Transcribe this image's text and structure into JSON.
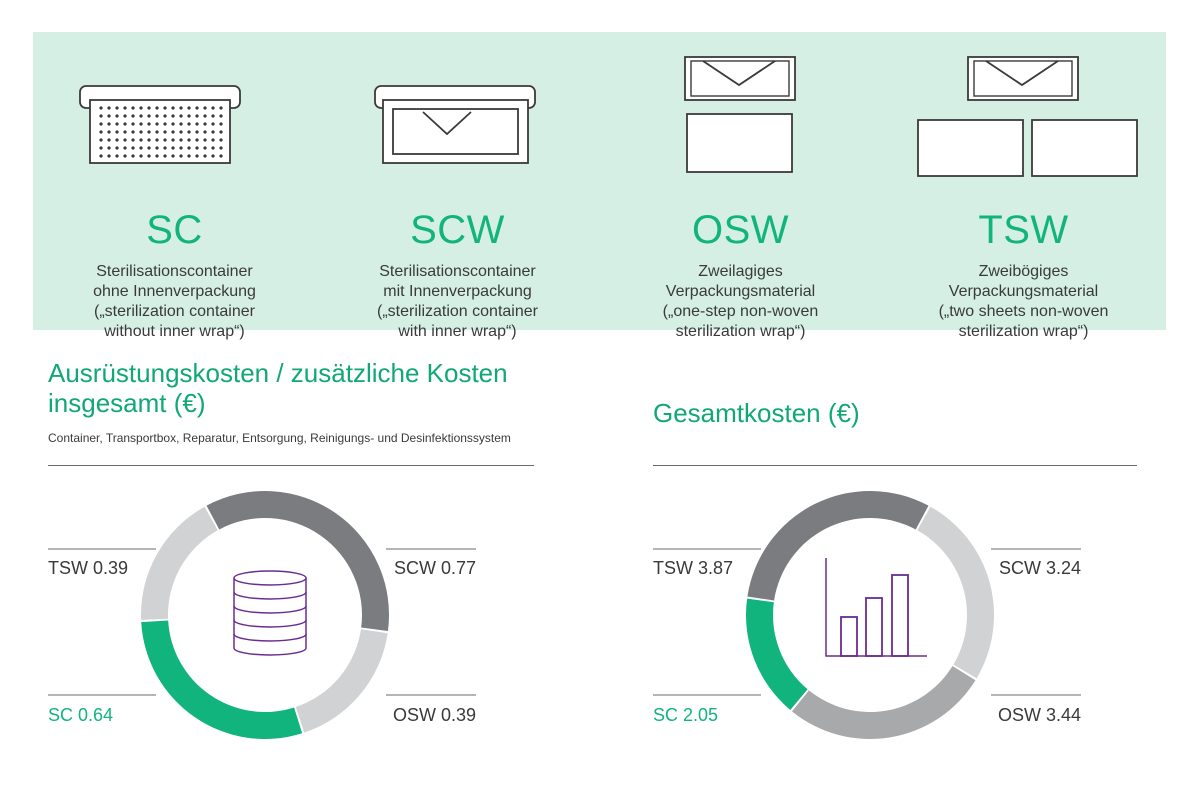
{
  "packaging": [
    {
      "code": "SC",
      "lines": [
        "Sterilisationscontainer",
        "ohne Innenverpackung",
        "(„sterilization container",
        "without inner wrap“)"
      ],
      "icon": "container-perforated-icon"
    },
    {
      "code": "SCW",
      "lines": [
        "Sterilisationscontainer",
        "mit Innenverpackung",
        "(„sterilization container",
        "with inner wrap“)"
      ],
      "icon": "container-with-wrap-icon"
    },
    {
      "code": "OSW",
      "lines": [
        "Zweilagiges",
        "Verpackungsmaterial",
        "(„one-step non-woven",
        "sterilization wrap“)"
      ],
      "icon": "one-step-wrap-icon"
    },
    {
      "code": "TSW",
      "lines": [
        "Zweibögiges",
        "Verpackungsmaterial",
        "(„two sheets non-woven",
        "sterilization wrap“)"
      ],
      "icon": "two-sheets-wrap-icon"
    }
  ],
  "colors": {
    "band": "#d5efe4",
    "accent_green": "#12b47e",
    "dark_gray": "#7b7c80",
    "mid_gray": "#a7a9ab",
    "light_gray": "#d1d2d3",
    "icon_purple": "#6a2c91"
  },
  "chart_data": [
    {
      "type": "pie",
      "title": "Ausrüstungskosten / zusätzliche Kosten insgesamt (€)",
      "title_lines": [
        "Ausrüstungskosten / zusätzliche Kosten",
        "insgesamt (€)"
      ],
      "subtitle": "Container, Transportbox, Reparatur, Entsorgung, Reinigungs- und Desinfektionssystem",
      "center_icon": "coin-stack-icon",
      "style": "donut",
      "series": [
        {
          "label": "SCW",
          "value": 0.77,
          "color": "#7b7c80",
          "text": "SCW 0.77"
        },
        {
          "label": "OSW",
          "value": 0.39,
          "color": "#d1d2d3",
          "text": "OSW 0.39"
        },
        {
          "label": "SC",
          "value": 0.64,
          "color": "#12b47e",
          "text": "SC 0.64"
        },
        {
          "label": "TSW",
          "value": 0.39,
          "color": "#d1d2d3",
          "text": "TSW 0.39"
        }
      ]
    },
    {
      "type": "pie",
      "title": "Gesamtkosten (€)",
      "title_lines": [
        "Gesamtkosten (€)"
      ],
      "subtitle": "",
      "center_icon": "bar-chart-icon",
      "style": "donut",
      "series": [
        {
          "label": "SCW",
          "value": 3.24,
          "color": "#d1d2d3",
          "text": "SCW 3.24"
        },
        {
          "label": "OSW",
          "value": 3.44,
          "color": "#a7a9ab",
          "text": "OSW 3.44"
        },
        {
          "label": "SC",
          "value": 2.05,
          "color": "#12b47e",
          "text": "SC 2.05"
        },
        {
          "label": "TSW",
          "value": 3.87,
          "color": "#7b7c80",
          "text": "TSW 3.87"
        }
      ]
    }
  ]
}
